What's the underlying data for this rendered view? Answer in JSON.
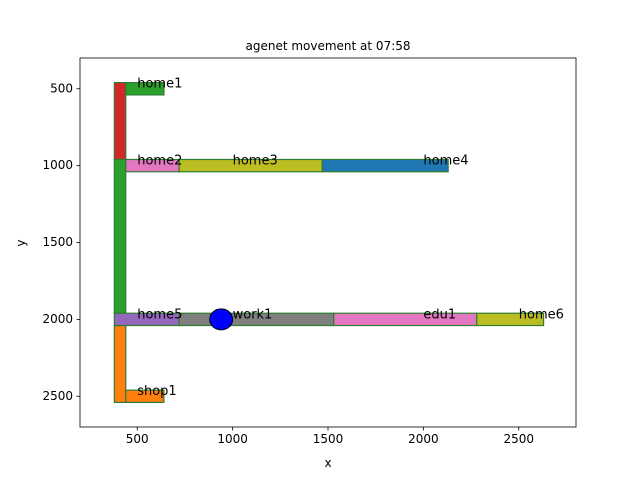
{
  "chart_data": {
    "type": "map",
    "title": "agenet movement at 07:58",
    "xlabel": "x",
    "ylabel": "y",
    "xlim": [
      200,
      2800
    ],
    "ylim": [
      2700,
      300
    ],
    "y_inverted": true,
    "xticks": [
      500,
      1000,
      1500,
      2000,
      2500
    ],
    "yticks": [
      500,
      1000,
      1500,
      2000,
      2500
    ],
    "edge_color": "#2e7d32",
    "rects": [
      {
        "name": "road-vertical-top",
        "x0": 380,
        "x1": 440,
        "y0": 460,
        "y1": 960,
        "color": "#d62728"
      },
      {
        "name": "road-vertical-mid",
        "x0": 380,
        "x1": 440,
        "y0": 960,
        "y1": 1960,
        "color": "#2ca02c"
      },
      {
        "name": "road-vertical-bottom",
        "x0": 380,
        "x1": 440,
        "y0": 2040,
        "y1": 2540,
        "color": "#ff7f0e"
      },
      {
        "name": "home1",
        "x0": 440,
        "x1": 640,
        "y0": 460,
        "y1": 540,
        "color": "#2ca02c"
      },
      {
        "name": "home2",
        "x0": 440,
        "x1": 720,
        "y0": 960,
        "y1": 1040,
        "color": "#e377c2"
      },
      {
        "name": "home3",
        "x0": 720,
        "x1": 1470,
        "y0": 960,
        "y1": 1040,
        "color": "#bcbd22"
      },
      {
        "name": "home4",
        "x0": 1470,
        "x1": 2130,
        "y0": 960,
        "y1": 1040,
        "color": "#1f77b4"
      },
      {
        "name": "home5",
        "x0": 380,
        "x1": 720,
        "y0": 1960,
        "y1": 2040,
        "color": "#9467bd"
      },
      {
        "name": "work1",
        "x0": 720,
        "x1": 1530,
        "y0": 1960,
        "y1": 2040,
        "color": "#7f7f7f"
      },
      {
        "name": "edu1",
        "x0": 1530,
        "x1": 2280,
        "y0": 1960,
        "y1": 2040,
        "color": "#e377c2"
      },
      {
        "name": "home6",
        "x0": 2280,
        "x1": 2630,
        "y0": 1960,
        "y1": 2040,
        "color": "#bcbd22"
      },
      {
        "name": "shop1",
        "x0": 440,
        "x1": 640,
        "y0": 2460,
        "y1": 2540,
        "color": "#ff7f0e"
      }
    ],
    "labels": [
      {
        "text": "home1",
        "x": 500,
        "y": 470
      },
      {
        "text": "home2",
        "x": 500,
        "y": 970
      },
      {
        "text": "home3",
        "x": 1000,
        "y": 970
      },
      {
        "text": "home4",
        "x": 2000,
        "y": 970
      },
      {
        "text": "home5",
        "x": 500,
        "y": 1970
      },
      {
        "text": "work1",
        "x": 1000,
        "y": 1970
      },
      {
        "text": "edu1",
        "x": 2000,
        "y": 1970
      },
      {
        "text": "home6",
        "x": 2500,
        "y": 1970
      },
      {
        "text": "shop1",
        "x": 500,
        "y": 2470
      }
    ],
    "agent": {
      "x": 940,
      "y": 2000,
      "color": "#0000ff"
    }
  }
}
